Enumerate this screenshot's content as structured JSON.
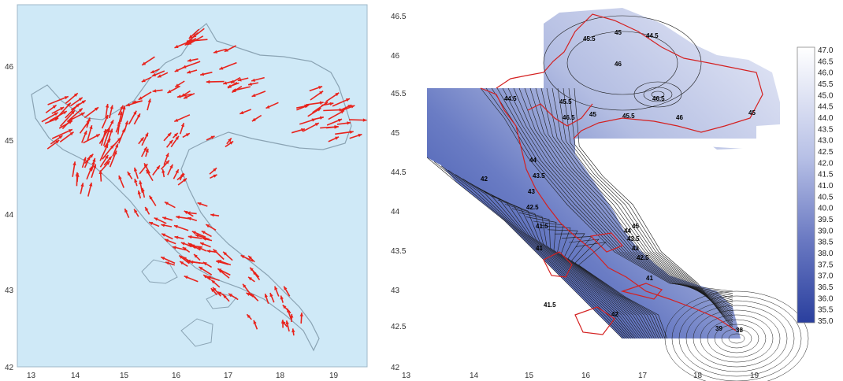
{
  "left_map": {
    "background": "#cfe9f7",
    "arrow_color": "#e8231c",
    "x_ticks": [
      "13",
      "14",
      "15",
      "16",
      "17",
      "18",
      "19"
    ],
    "y_ticks": [
      "42",
      "43",
      "44",
      "45",
      "46"
    ]
  },
  "right_map": {
    "x_ticks": [
      "13",
      "14",
      "15",
      "16",
      "17",
      "18",
      "19"
    ],
    "y_ticks": [
      "42",
      "42.5",
      "43",
      "43.5",
      "44",
      "44.5",
      "45",
      "45.5",
      "46",
      "46.5"
    ],
    "contour_labels": [
      "45.5",
      "45",
      "44.5",
      "46",
      "45.5",
      "45",
      "46.5",
      "46.5",
      "45.5",
      "46",
      "45",
      "44.5",
      "44",
      "43.5",
      "43",
      "42",
      "42.5",
      "41",
      "41.5",
      "41.5",
      "41",
      "38",
      "39",
      "42.5",
      "43",
      "44",
      "43.5",
      "45",
      "42"
    ],
    "colorbar": {
      "labels": [
        "47.0",
        "46.5",
        "46.0",
        "45.5",
        "45.0",
        "44.5",
        "44.0",
        "43.5",
        "43.0",
        "42.5",
        "42.0",
        "41.5",
        "41.0",
        "40.5",
        "40.0",
        "39.5",
        "39.0",
        "38.5",
        "38.0",
        "37.5",
        "37.0",
        "36.5",
        "36.0",
        "35.5",
        "35.0"
      ],
      "color_top": "#ffffff",
      "color_bottom": "#2a3f9e"
    },
    "border_color": "#d42020"
  }
}
